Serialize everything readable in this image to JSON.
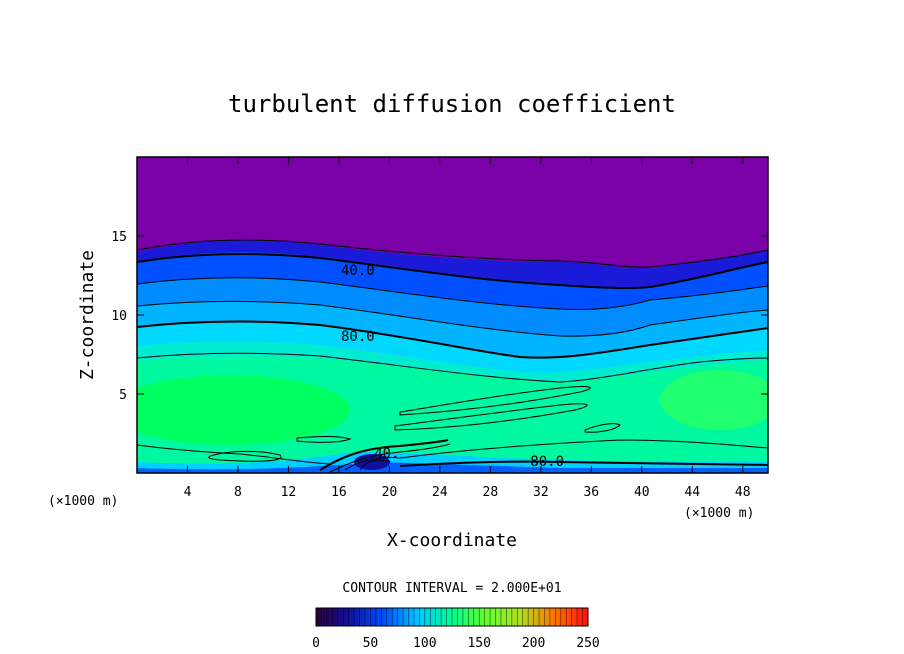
{
  "chart_data": {
    "type": "contour",
    "title": "turbulent diffusion coefficient",
    "xlabel": "X-coordinate",
    "ylabel": "Z-coordinate",
    "x_unit_left": "(×1000 m)",
    "x_unit_right": "(×1000 m)",
    "xlim": [
      0,
      50
    ],
    "ylim": [
      0,
      20
    ],
    "xticks": [
      4,
      8,
      12,
      16,
      20,
      24,
      28,
      32,
      36,
      40,
      44,
      48
    ],
    "yticks": [
      5,
      10,
      15
    ],
    "contour_interval_text": "CONTOUR INTERVAL = 2.000E+01",
    "contour_labels": [
      {
        "text": "40.0",
        "x": 17.5,
        "y": 12.8
      },
      {
        "text": "80.0",
        "x": 17.5,
        "y": 8.6
      },
      {
        "text": "80.0",
        "x": 32.5,
        "y": 0.7
      },
      {
        "text": "40.",
        "x": 19.8,
        "y": 1.2
      }
    ],
    "colorbar": {
      "min": 0,
      "max": 250,
      "ticks": [
        0,
        50,
        100,
        150,
        200,
        250
      ]
    }
  }
}
